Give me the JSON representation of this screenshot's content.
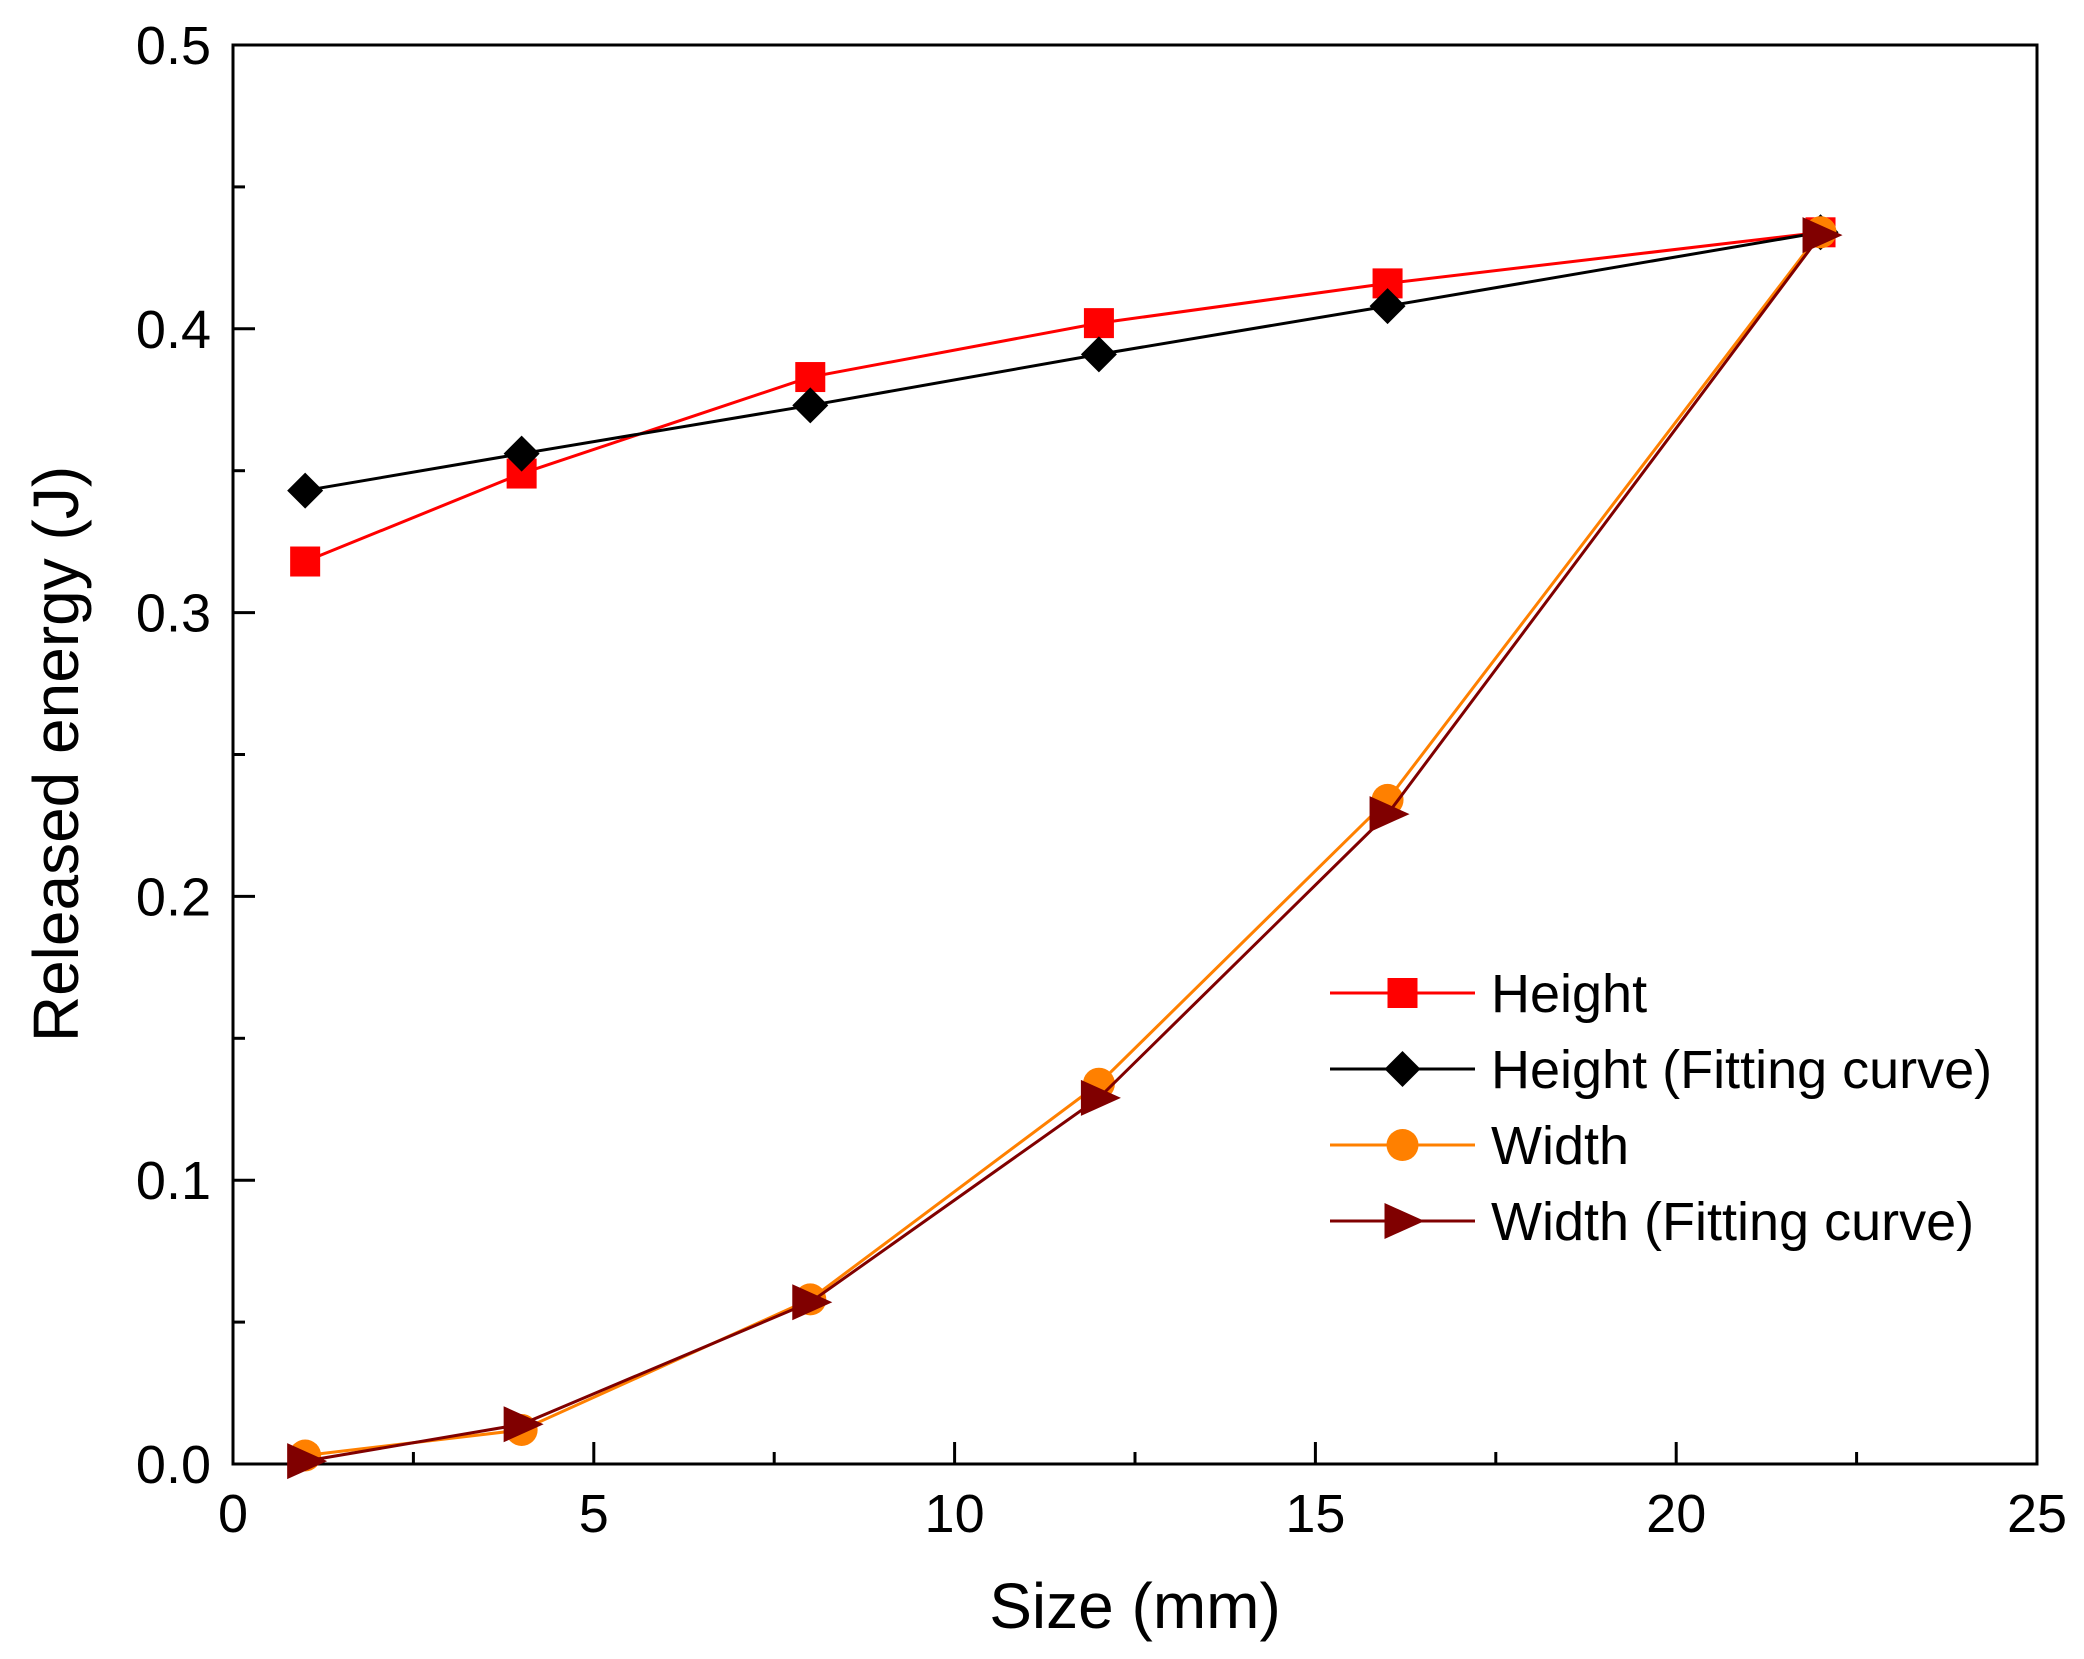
{
  "chart_data": {
    "type": "line",
    "title": "",
    "xlabel": "Size (mm)",
    "ylabel": "Released energy (J)",
    "xlim": [
      0,
      25
    ],
    "ylim": [
      0,
      0.5
    ],
    "x_ticks": [
      0,
      5,
      10,
      15,
      20,
      25
    ],
    "x_tick_labels": [
      "0",
      "5",
      "10",
      "15",
      "20",
      "25"
    ],
    "y_ticks": [
      0,
      0.1,
      0.2,
      0.3,
      0.4,
      0.5
    ],
    "y_tick_labels": [
      "0.0",
      "0.1",
      "0.2",
      "0.3",
      "0.4",
      "0.5"
    ],
    "grid": false,
    "legend_position": "center-right",
    "series": [
      {
        "name": "Height",
        "marker": "square",
        "color": "#ff0000",
        "x": [
          1,
          4,
          8,
          12,
          16,
          22
        ],
        "y": [
          0.318,
          0.349,
          0.383,
          0.402,
          0.416,
          0.434
        ]
      },
      {
        "name": "Height (Fitting curve)",
        "marker": "diamond",
        "color": "#000000",
        "x": [
          1,
          4,
          8,
          12,
          16,
          22
        ],
        "y": [
          0.343,
          0.356,
          0.373,
          0.391,
          0.408,
          0.434
        ]
      },
      {
        "name": "Width",
        "marker": "circle",
        "color": "#ff8000",
        "x": [
          1,
          4,
          8,
          12,
          16,
          22
        ],
        "y": [
          0.003,
          0.012,
          0.058,
          0.134,
          0.234,
          0.434
        ]
      },
      {
        "name": "Width (Fitting curve)",
        "marker": "triangle-right",
        "color": "#800000",
        "x": [
          1,
          4,
          8,
          12,
          16,
          22
        ],
        "y": [
          0.001,
          0.014,
          0.057,
          0.129,
          0.229,
          0.433
        ]
      }
    ]
  }
}
